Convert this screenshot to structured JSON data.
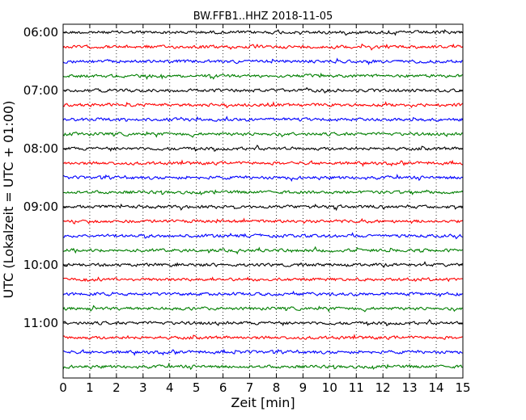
{
  "chart_data": {
    "type": "line",
    "title": "BW.FFB1..HHZ 2018-11-05",
    "xlabel": "Zeit  [min]",
    "ylabel": "UTC (Lokalzeit = UTC + 01:00)",
    "xlim": [
      0,
      15
    ],
    "x_ticks": [
      "0",
      "1",
      "2",
      "3",
      "4",
      "5",
      "6",
      "7",
      "8",
      "9",
      "10",
      "11",
      "12",
      "13",
      "14",
      "15"
    ],
    "y_ticks": [
      "06:00",
      "07:00",
      "08:00",
      "09:00",
      "10:00",
      "11:00"
    ],
    "grid": "vertical dotted at each minute",
    "series_colors": [
      "#000000",
      "#ff0000",
      "#0000ff",
      "#007f00"
    ],
    "rows_per_hour": 4,
    "row_count": 24,
    "trace_type": "seismogram (dayplot, 15-minute lines)"
  }
}
